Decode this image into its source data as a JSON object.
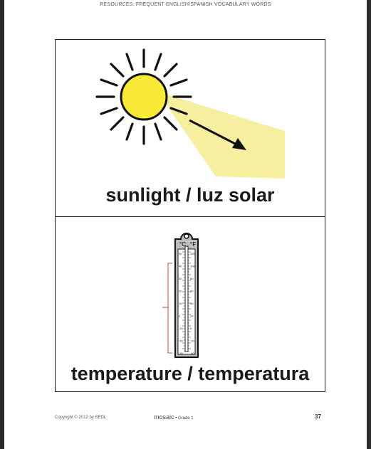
{
  "header": {
    "title": "RESOURCES: FREQUENT ENGLISH/SPANISH VOCABULARY WORDS"
  },
  "cards": [
    {
      "caption": "sunlight / luz solar",
      "icon": "sun-icon"
    },
    {
      "caption": "temperature / temperatura",
      "icon": "thermometer-icon",
      "scale_c": "°C",
      "scale_f": "°F",
      "c_ticks": [
        "50",
        "40",
        "30",
        "20",
        "10",
        "0",
        "-10",
        "-20",
        "-30"
      ],
      "f_ticks": [
        "120",
        "100",
        "80",
        "60",
        "40",
        "20",
        "0",
        "-20",
        "-40"
      ]
    }
  ],
  "footer": {
    "copyright": "Copyright © 2012 by SEDL",
    "program": "mosaic",
    "grade": " • Grade 1",
    "page_number": "37"
  }
}
